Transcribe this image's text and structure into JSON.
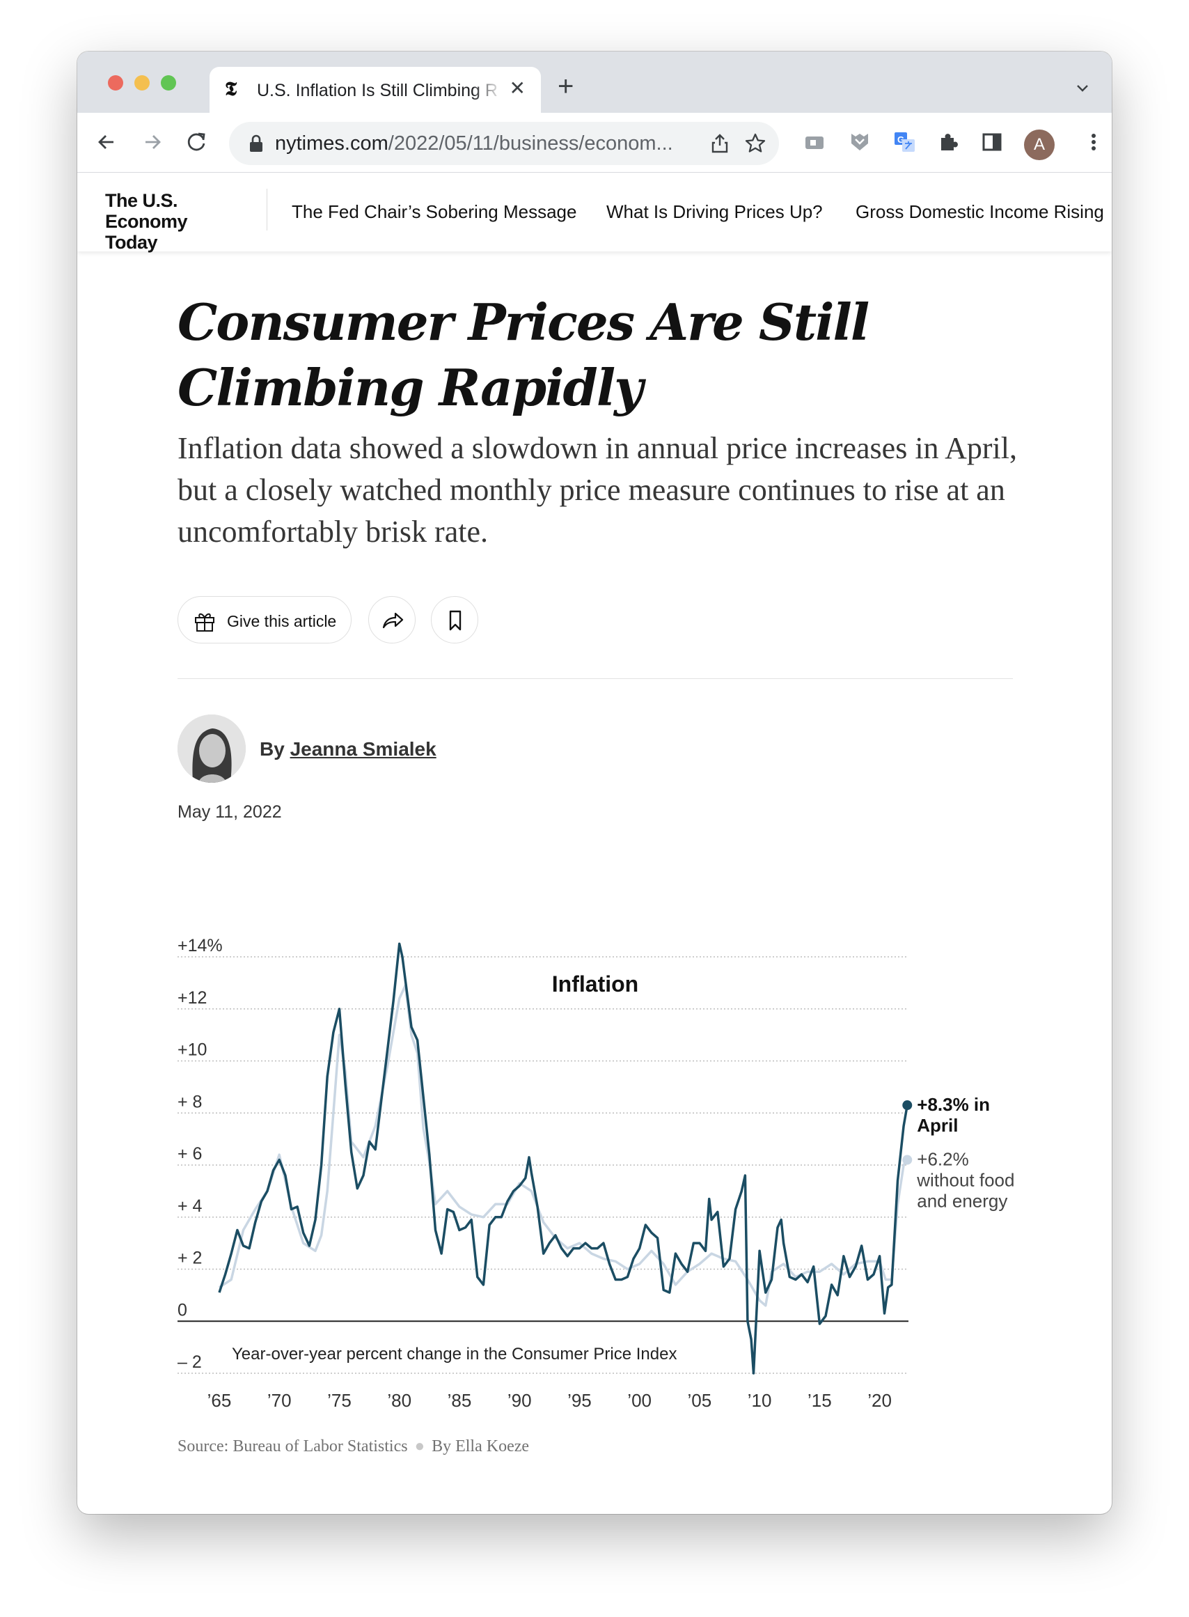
{
  "browser": {
    "tab_title": "U.S. Inflation Is Still Climbing R",
    "tab_favicon": "nyt-logo-icon",
    "new_tab_symbol": "+",
    "close_symbol": "✕",
    "url_host": "nytimes.com",
    "url_path": "/2022/05/11/business/econom...",
    "profile_initial": "A",
    "colors": {
      "red": "#ec6a5e",
      "yellow": "#f4bf4f",
      "green": "#61c554",
      "profile": "#8c6a5d"
    }
  },
  "sitenav": {
    "brand": "The U.S. Economy Today",
    "links": [
      "The Fed Chair’s Sobering Message",
      "What Is Driving Prices Up?",
      "Gross Domestic Income Rising"
    ]
  },
  "article": {
    "headline": "Consumer Prices Are Still Climbing Rapidly",
    "summary": "Inflation data showed a slowdown in annual price increases in April, but a closely watched monthly price measure continues to rise at an uncomfortably brisk rate.",
    "give_label": "Give this article",
    "by_prefix": "By",
    "author": "Jeanna Smialek",
    "date": "May 11, 2022",
    "source": "Source: Bureau of Labor Statistics",
    "chart_credit": "By Ella Koeze"
  },
  "chart_data": {
    "type": "line",
    "title": "Inflation",
    "note": "Year-over-year percent change in the Consumer Price Index",
    "ylim": [
      -2,
      14
    ],
    "xlim": [
      1965,
      2022.4
    ],
    "yticks": [
      {
        "v": 14,
        "label": "+14%"
      },
      {
        "v": 12,
        "label": "+12"
      },
      {
        "v": 10,
        "label": "+10"
      },
      {
        "v": 8,
        "label": "+ 8"
      },
      {
        "v": 6,
        "label": "+ 6"
      },
      {
        "v": 4,
        "label": "+ 4"
      },
      {
        "v": 2,
        "label": "+ 2"
      },
      {
        "v": 0,
        "label": "0"
      },
      {
        "v": -2,
        "label": "– 2"
      }
    ],
    "xticks": [
      {
        "v": 1965,
        "label": "’65"
      },
      {
        "v": 1970,
        "label": "’70"
      },
      {
        "v": 1975,
        "label": "’75"
      },
      {
        "v": 1980,
        "label": "’80"
      },
      {
        "v": 1985,
        "label": "’85"
      },
      {
        "v": 1990,
        "label": "’90"
      },
      {
        "v": 1995,
        "label": "’95"
      },
      {
        "v": 2000,
        "label": "’00"
      },
      {
        "v": 2005,
        "label": "’05"
      },
      {
        "v": 2010,
        "label": "’10"
      },
      {
        "v": 2015,
        "label": "’15"
      },
      {
        "v": 2020,
        "label": "’20"
      }
    ],
    "annotations": {
      "headline_line1": "+8.3% in",
      "headline_line2": "April",
      "core_line1": "+6.2%",
      "core_line2": "without food",
      "core_line3": "and energy"
    },
    "colors": {
      "headline": "#1b4d63",
      "core": "#c9d6e3",
      "grid": "#bdbdbd"
    },
    "series": [
      {
        "key": "headline",
        "x": [
          1965.0,
          1965.5,
          1966.0,
          1966.5,
          1967.0,
          1967.5,
          1968.0,
          1968.5,
          1969.0,
          1969.5,
          1970.0,
          1970.5,
          1971.0,
          1971.5,
          1972.0,
          1972.5,
          1973.0,
          1973.5,
          1974.0,
          1974.5,
          1975.0,
          1975.5,
          1976.0,
          1976.5,
          1977.0,
          1977.5,
          1978.0,
          1978.5,
          1979.0,
          1979.5,
          1980.0,
          1980.25,
          1980.5,
          1981.0,
          1981.5,
          1982.0,
          1982.5,
          1983.0,
          1983.5,
          1984.0,
          1984.5,
          1985.0,
          1985.5,
          1986.0,
          1986.5,
          1987.0,
          1987.5,
          1988.0,
          1988.5,
          1989.0,
          1989.5,
          1990.0,
          1990.5,
          1990.8,
          1991.0,
          1991.5,
          1992.0,
          1992.5,
          1993.0,
          1993.5,
          1994.0,
          1994.5,
          1995.0,
          1995.5,
          1996.0,
          1996.5,
          1997.0,
          1997.5,
          1998.0,
          1998.5,
          1999.0,
          1999.5,
          2000.0,
          2000.5,
          2001.0,
          2001.5,
          2002.0,
          2002.5,
          2003.0,
          2003.5,
          2004.0,
          2004.5,
          2005.0,
          2005.5,
          2005.8,
          2006.0,
          2006.5,
          2007.0,
          2007.5,
          2008.0,
          2008.5,
          2008.8,
          2009.0,
          2009.3,
          2009.5,
          2010.0,
          2010.5,
          2011.0,
          2011.5,
          2011.8,
          2012.0,
          2012.5,
          2013.0,
          2013.5,
          2014.0,
          2014.5,
          2015.0,
          2015.5,
          2016.0,
          2016.5,
          2017.0,
          2017.5,
          2018.0,
          2018.5,
          2019.0,
          2019.5,
          2020.0,
          2020.4,
          2020.7,
          2021.0,
          2021.5,
          2022.0,
          2022.3
        ],
        "y": [
          1.1,
          1.8,
          2.6,
          3.5,
          2.9,
          2.8,
          3.8,
          4.6,
          5.0,
          5.8,
          6.2,
          5.6,
          4.3,
          4.4,
          3.4,
          2.9,
          3.9,
          6.0,
          9.4,
          11.1,
          12.0,
          9.1,
          6.5,
          5.1,
          5.6,
          6.9,
          6.6,
          8.5,
          10.4,
          12.3,
          14.5,
          14.0,
          13.1,
          11.3,
          10.8,
          8.6,
          6.4,
          3.5,
          2.6,
          4.3,
          4.2,
          3.5,
          3.6,
          3.9,
          1.7,
          1.4,
          3.7,
          4.0,
          4.0,
          4.6,
          5.0,
          5.2,
          5.5,
          6.3,
          5.7,
          4.4,
          2.6,
          3.0,
          3.3,
          2.8,
          2.5,
          2.8,
          2.8,
          3.0,
          2.8,
          2.8,
          3.0,
          2.2,
          1.6,
          1.6,
          1.7,
          2.4,
          2.8,
          3.7,
          3.4,
          3.2,
          1.2,
          1.1,
          2.6,
          2.2,
          1.9,
          3.0,
          3.0,
          2.7,
          4.7,
          3.9,
          4.2,
          2.1,
          2.4,
          4.3,
          5.0,
          5.6,
          0.0,
          -0.7,
          -2.0,
          2.7,
          1.1,
          1.6,
          3.6,
          3.9,
          3.0,
          1.7,
          1.6,
          1.8,
          1.5,
          2.1,
          -0.1,
          0.2,
          1.4,
          1.0,
          2.5,
          1.7,
          2.1,
          2.9,
          1.6,
          1.8,
          2.5,
          0.3,
          1.3,
          1.4,
          5.4,
          7.5,
          8.3
        ]
      },
      {
        "key": "core",
        "x": [
          1965.0,
          1966.0,
          1967.0,
          1968.0,
          1969.0,
          1970.0,
          1971.0,
          1972.0,
          1973.0,
          1973.5,
          1974.0,
          1974.5,
          1975.0,
          1975.5,
          1976.0,
          1977.0,
          1978.0,
          1979.0,
          1980.0,
          1980.5,
          1981.0,
          1981.5,
          1982.0,
          1982.5,
          1983.0,
          1984.0,
          1985.0,
          1986.0,
          1987.0,
          1988.0,
          1989.0,
          1990.0,
          1991.0,
          1992.0,
          1993.0,
          1994.0,
          1995.0,
          1996.0,
          1997.0,
          1998.0,
          1999.0,
          2000.0,
          2001.0,
          2002.0,
          2003.0,
          2004.0,
          2005.0,
          2006.0,
          2007.0,
          2008.0,
          2009.0,
          2010.0,
          2010.5,
          2011.0,
          2012.0,
          2013.0,
          2014.0,
          2015.0,
          2016.0,
          2017.0,
          2018.0,
          2019.0,
          2020.0,
          2020.5,
          2021.0,
          2021.5,
          2022.0,
          2022.3
        ],
        "y": [
          1.3,
          1.6,
          3.5,
          4.3,
          5.0,
          6.4,
          4.4,
          3.0,
          2.7,
          3.3,
          5.0,
          8.0,
          11.0,
          9.6,
          6.9,
          6.3,
          7.5,
          9.8,
          12.4,
          12.9,
          11.0,
          10.3,
          7.4,
          6.1,
          4.5,
          5.0,
          4.4,
          4.1,
          4.0,
          4.5,
          4.5,
          5.3,
          5.0,
          3.8,
          3.2,
          2.8,
          3.0,
          2.6,
          2.4,
          2.3,
          2.0,
          2.2,
          2.7,
          2.2,
          1.4,
          1.9,
          2.2,
          2.6,
          2.4,
          2.3,
          1.6,
          0.8,
          0.6,
          1.9,
          2.2,
          1.7,
          1.9,
          1.9,
          2.2,
          1.8,
          2.2,
          2.3,
          2.3,
          1.6,
          1.6,
          4.5,
          6.0,
          6.2
        ]
      }
    ]
  }
}
